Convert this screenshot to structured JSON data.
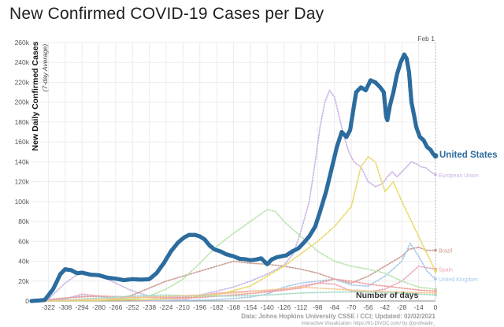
{
  "page": {
    "title": "New Confirmed COVID-19 Cases per Day"
  },
  "chart_data": {
    "type": "line",
    "title": "New Confirmed COVID-19 Cases per Day",
    "ylabel": "New Daily Confirmed Cases",
    "ylabel_sub": "(7-day Average)",
    "xlabel": "Number of days",
    "xlim": [
      -336,
      0
    ],
    "ylim": [
      0,
      260000
    ],
    "y_ticks": [
      0,
      20000,
      40000,
      60000,
      80000,
      100000,
      120000,
      140000,
      160000,
      180000,
      200000,
      220000,
      240000,
      260000
    ],
    "y_tick_labels": [
      "0",
      "20k",
      "40k",
      "60k",
      "80k",
      "100k",
      "120k",
      "140k",
      "160k",
      "180k",
      "200k",
      "220k",
      "240k",
      "260k"
    ],
    "x_ticks": [
      -322,
      -308,
      -294,
      -280,
      -266,
      -252,
      -238,
      -224,
      -210,
      -196,
      -182,
      -168,
      -154,
      -140,
      -126,
      -112,
      -98,
      -84,
      -70,
      -56,
      -42,
      -28,
      -14,
      0
    ],
    "x_tick_labels": [
      "-322",
      "-308",
      "-294",
      "-280",
      "-266",
      "-252",
      "-238",
      "-224",
      "-210",
      "-196",
      "-182",
      "-168",
      "-154",
      "-140",
      "-126",
      "-112",
      "-98",
      "-84",
      "-70",
      "-56",
      "-42",
      "-28",
      "-14",
      "0"
    ],
    "date_marker": {
      "label": "Feb 1",
      "x": 0
    },
    "grid": true,
    "source": "Data: Johns Hopkins University CSSE / CCI; Updated: 02/02/2021",
    "credit": "Interactive Visualization: https://91-DIVOC.com/ by @profwade_",
    "series": [
      {
        "name": "United States",
        "color": "#2c6c9e",
        "emphasis": true,
        "x": [
          -336,
          -325,
          -318,
          -312,
          -308,
          -303,
          -298,
          -294,
          -287,
          -280,
          -273,
          -266,
          -259,
          -252,
          -245,
          -238,
          -232,
          -226,
          -220,
          -214,
          -209,
          -205,
          -200,
          -196,
          -192,
          -188,
          -184,
          -179,
          -174,
          -168,
          -163,
          -158,
          -154,
          -150,
          -145,
          -140,
          -136,
          -132,
          -128,
          -124,
          -119,
          -114,
          -110,
          -105,
          -100,
          -96,
          -91,
          -86,
          -82,
          -78,
          -74,
          -71,
          -68,
          -66,
          -62,
          -58,
          -54,
          -50,
          -46,
          -43,
          -41,
          -40,
          -38,
          -35,
          -32,
          -29,
          -26,
          -24,
          -22,
          -20,
          -18,
          -16,
          -13,
          -10,
          -7,
          -4,
          -2,
          0
        ],
        "y": [
          0,
          1000,
          12000,
          27000,
          32000,
          31000,
          28000,
          28500,
          26500,
          26000,
          23500,
          22500,
          21000,
          22000,
          21500,
          22000,
          28000,
          38000,
          50000,
          59000,
          64000,
          66500,
          66500,
          65000,
          62000,
          56000,
          52000,
          50000,
          47000,
          45000,
          42500,
          42000,
          41000,
          41500,
          43000,
          37000,
          42000,
          44000,
          45000,
          46000,
          50000,
          53000,
          58000,
          65000,
          75000,
          90000,
          110000,
          135000,
          155000,
          170000,
          165000,
          172000,
          195000,
          210000,
          215000,
          212000,
          222000,
          220000,
          215000,
          210000,
          185000,
          182000,
          196000,
          210000,
          228000,
          240000,
          248000,
          244000,
          230000,
          200000,
          188000,
          175000,
          165000,
          162000,
          155000,
          152000,
          148000,
          146000
        ]
      },
      {
        "name": "European Union",
        "color": "#c9b3e2",
        "x": [
          -336,
          -322,
          -308,
          -294,
          -280,
          -266,
          -252,
          -238,
          -224,
          -210,
          -196,
          -182,
          -168,
          -154,
          -140,
          -126,
          -118,
          -112,
          -105,
          -100,
          -96,
          -92,
          -88,
          -84,
          -80,
          -76,
          -72,
          -68,
          -62,
          -56,
          -50,
          -44,
          -40,
          -36,
          -32,
          -28,
          -24,
          -20,
          -16,
          -12,
          -8,
          -4,
          0
        ],
        "y": [
          0,
          2000,
          18000,
          30000,
          26000,
          18000,
          10000,
          5000,
          4000,
          4000,
          6000,
          10000,
          14000,
          20000,
          27000,
          36000,
          48000,
          70000,
          100000,
          140000,
          175000,
          200000,
          212000,
          205000,
          185000,
          165000,
          150000,
          140000,
          135000,
          120000,
          115000,
          118000,
          125000,
          130000,
          125000,
          130000,
          135000,
          140000,
          138000,
          135000,
          134000,
          130000,
          127000
        ]
      },
      {
        "name": "Brazil",
        "color": "#c79a90",
        "x": [
          -336,
          -308,
          -280,
          -266,
          -252,
          -238,
          -224,
          -210,
          -196,
          -182,
          -168,
          -154,
          -140,
          -126,
          -112,
          -98,
          -84,
          -70,
          -56,
          -42,
          -28,
          -22,
          -14,
          -7,
          0
        ],
        "y": [
          0,
          0,
          200,
          1500,
          6000,
          13000,
          20000,
          25000,
          30000,
          35000,
          40000,
          38000,
          37000,
          35000,
          32000,
          28000,
          22000,
          18000,
          25000,
          35000,
          45000,
          52000,
          54000,
          51000,
          51000
        ]
      },
      {
        "name": "Spain",
        "color": "#eaa6b9",
        "x": [
          -336,
          -308,
          -294,
          -280,
          -266,
          -252,
          -238,
          -224,
          -210,
          -196,
          -182,
          -168,
          -154,
          -140,
          -126,
          -112,
          -98,
          -84,
          -70,
          -56,
          -42,
          -28,
          -14,
          0
        ],
        "y": [
          0,
          2000,
          7000,
          5000,
          2000,
          700,
          300,
          500,
          1500,
          5000,
          8000,
          9000,
          10000,
          10000,
          12000,
          15000,
          18000,
          17000,
          10000,
          9000,
          12000,
          20000,
          35000,
          32000
        ]
      },
      {
        "name": "United Kingdom",
        "color": "#a3c7ea",
        "x": [
          -336,
          -308,
          -294,
          -280,
          -266,
          -252,
          -238,
          -224,
          -210,
          -196,
          -182,
          -168,
          -154,
          -140,
          -126,
          -112,
          -98,
          -84,
          -70,
          -56,
          -42,
          -28,
          -21,
          -14,
          -7,
          0
        ],
        "y": [
          0,
          3000,
          5000,
          4500,
          3000,
          1500,
          700,
          600,
          700,
          900,
          1200,
          2500,
          4000,
          7000,
          14000,
          18000,
          20000,
          22000,
          16000,
          15000,
          25000,
          40000,
          58000,
          45000,
          30000,
          22000
        ]
      },
      {
        "name": "",
        "color": "#b6e2a8",
        "x": [
          -336,
          -308,
          -280,
          -252,
          -238,
          -224,
          -210,
          -196,
          -182,
          -168,
          -154,
          -140,
          -133,
          -126,
          -112,
          -98,
          -84,
          -70,
          -56,
          -42,
          -28,
          -14,
          0
        ],
        "y": [
          0,
          0,
          500,
          2000,
          5000,
          12000,
          22000,
          38000,
          55000,
          68000,
          80000,
          92000,
          90000,
          80000,
          65000,
          50000,
          40000,
          35000,
          32000,
          28000,
          20000,
          14000,
          12000
        ]
      },
      {
        "name": "",
        "color": "#e7d65a",
        "x": [
          -336,
          -294,
          -266,
          -238,
          -210,
          -182,
          -154,
          -126,
          -98,
          -84,
          -70,
          -62,
          -56,
          -50,
          -42,
          -35,
          -28,
          -14,
          0
        ],
        "y": [
          0,
          500,
          1000,
          1500,
          3000,
          6000,
          15000,
          35000,
          60000,
          75000,
          95000,
          135000,
          145000,
          140000,
          110000,
          120000,
          100000,
          65000,
          30000
        ]
      },
      {
        "name": "",
        "color": "#ef9a9a",
        "x": [
          -336,
          -308,
          -280,
          -252,
          -224,
          -196,
          -168,
          -140,
          -112,
          -98,
          -84,
          -70,
          -56,
          -42,
          -28,
          -14,
          0
        ],
        "y": [
          0,
          3000,
          5000,
          4000,
          3000,
          3500,
          6000,
          9000,
          13000,
          18000,
          22000,
          20000,
          17000,
          15000,
          13000,
          11000,
          10000
        ]
      },
      {
        "name": "",
        "color": "#9fd9c6",
        "x": [
          -336,
          -308,
          -280,
          -252,
          -224,
          -196,
          -168,
          -140,
          -112,
          -84,
          -56,
          -28,
          0
        ],
        "y": [
          0,
          1000,
          3000,
          5000,
          6000,
          5000,
          5000,
          6000,
          8000,
          9000,
          9000,
          8000,
          6000
        ]
      },
      {
        "name": "",
        "color": "#f3c48c",
        "x": [
          -336,
          -308,
          -280,
          -252,
          -224,
          -196,
          -168,
          -140,
          -112,
          -84,
          -56,
          -28,
          0
        ],
        "y": [
          0,
          500,
          1500,
          3500,
          4500,
          6000,
          8000,
          11000,
          14000,
          12000,
          10000,
          9000,
          8000
        ]
      }
    ],
    "series_labels": [
      {
        "text": "European Union",
        "series": 1
      },
      {
        "text": "Brazil",
        "series": 2
      },
      {
        "text": "Spain",
        "series": 3
      },
      {
        "text": "United Kingdom",
        "series": 4
      }
    ]
  }
}
